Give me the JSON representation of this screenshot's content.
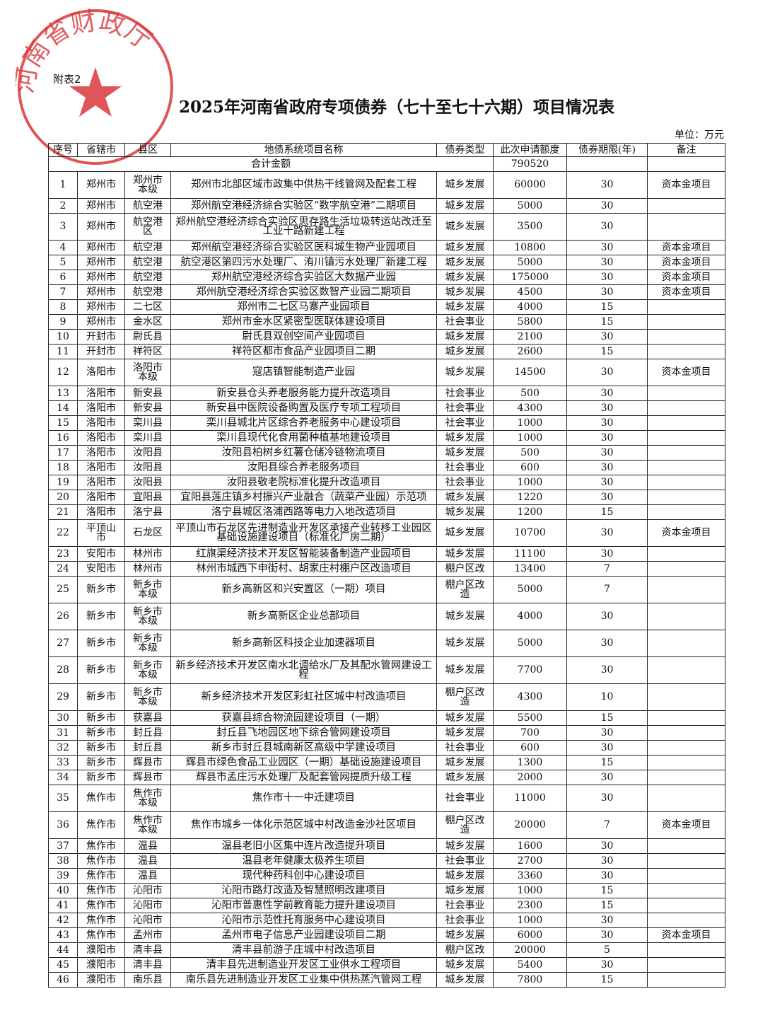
{
  "stamp": {
    "text": "河南省财政厅",
    "color": "#d8383c",
    "icon": "star-icon"
  },
  "annex_label": "附表2",
  "title": "2025年河南省政府专项债券（七十至七十六期）项目情况表",
  "unit": "单位：万元",
  "headers": [
    "序号",
    "省辖市",
    "县区",
    "地债系统项目名称",
    "债券类型",
    "此次申请额度",
    "债券期限(年)",
    "备注"
  ],
  "total": {
    "label": "合计金额",
    "amount": "790520",
    "term": "",
    "note": ""
  },
  "rows": [
    {
      "seq": "1",
      "city": "郑州市",
      "county": "郑州市本级",
      "name": "郑州市北部区域市政集中供热干线管网及配套工程",
      "type": "城乡发展",
      "amount": "60000",
      "term": "30",
      "note": "资本金项目"
    },
    {
      "seq": "2",
      "city": "郑州市",
      "county": "航空港",
      "name": "郑州航空港经济综合实验区“数字航空港”二期项目",
      "type": "城乡发展",
      "amount": "5000",
      "term": "30",
      "note": ""
    },
    {
      "seq": "3",
      "city": "郑州市",
      "county": "航空港区",
      "name": "郑州航空港经济综合实验区思存路生活垃圾转运站改迁至工业十路新建工程",
      "type": "城乡发展",
      "amount": "3500",
      "term": "30",
      "note": ""
    },
    {
      "seq": "4",
      "city": "郑州市",
      "county": "航空港",
      "name": "郑州航空港经济综合实验区医科城生物产业园项目",
      "type": "城乡发展",
      "amount": "10800",
      "term": "30",
      "note": "资本金项目"
    },
    {
      "seq": "5",
      "city": "郑州市",
      "county": "航空港",
      "name": "航空港区第四污水处理厂、洧川镇污水处理厂新建工程",
      "type": "城乡发展",
      "amount": "5000",
      "term": "30",
      "note": "资本金项目"
    },
    {
      "seq": "6",
      "city": "郑州市",
      "county": "航空港",
      "name": "郑州航空港经济综合实验区大数据产业园",
      "type": "城乡发展",
      "amount": "175000",
      "term": "30",
      "note": "资本金项目"
    },
    {
      "seq": "7",
      "city": "郑州市",
      "county": "航空港",
      "name": "郑州航空港经济综合实验区数智产业园二期项目",
      "type": "城乡发展",
      "amount": "4500",
      "term": "30",
      "note": "资本金项目"
    },
    {
      "seq": "8",
      "city": "郑州市",
      "county": "二七区",
      "name": "郑州市二七区马寨产业园项目",
      "type": "城乡发展",
      "amount": "4000",
      "term": "15",
      "note": ""
    },
    {
      "seq": "9",
      "city": "郑州市",
      "county": "金水区",
      "name": "郑州市金水区紧密型医联体建设项目",
      "type": "社会事业",
      "amount": "5800",
      "term": "15",
      "note": ""
    },
    {
      "seq": "10",
      "city": "开封市",
      "county": "尉氏县",
      "name": "尉氏县双创空间产业园项目",
      "type": "城乡发展",
      "amount": "2100",
      "term": "30",
      "note": ""
    },
    {
      "seq": "11",
      "city": "开封市",
      "county": "祥符区",
      "name": "祥符区都市食品产业园项目二期",
      "type": "城乡发展",
      "amount": "2600",
      "term": "15",
      "note": ""
    },
    {
      "seq": "12",
      "city": "洛阳市",
      "county": "洛阳市本级",
      "name": "寇店镇智能制造产业园",
      "type": "城乡发展",
      "amount": "14500",
      "term": "30",
      "note": "资本金项目"
    },
    {
      "seq": "13",
      "city": "洛阳市",
      "county": "新安县",
      "name": "新安县仓头养老服务能力提升改造项目",
      "type": "社会事业",
      "amount": "500",
      "term": "30",
      "note": ""
    },
    {
      "seq": "14",
      "city": "洛阳市",
      "county": "新安县",
      "name": "新安县中医院设备购置及医疗专项工程项目",
      "type": "社会事业",
      "amount": "4300",
      "term": "30",
      "note": ""
    },
    {
      "seq": "15",
      "city": "洛阳市",
      "county": "栾川县",
      "name": "栾川县城北片区综合养老服务中心建设项目",
      "type": "社会事业",
      "amount": "1000",
      "term": "30",
      "note": ""
    },
    {
      "seq": "16",
      "city": "洛阳市",
      "county": "栾川县",
      "name": "栾川县现代化食用菌种植基地建设项目",
      "type": "城乡发展",
      "amount": "1000",
      "term": "30",
      "note": ""
    },
    {
      "seq": "17",
      "city": "洛阳市",
      "county": "汝阳县",
      "name": "汝阳县柏树乡红薯仓储冷链物流项目",
      "type": "城乡发展",
      "amount": "500",
      "term": "30",
      "note": ""
    },
    {
      "seq": "18",
      "city": "洛阳市",
      "county": "汝阳县",
      "name": "汝阳县综合养老服务项目",
      "type": "社会事业",
      "amount": "600",
      "term": "30",
      "note": ""
    },
    {
      "seq": "19",
      "city": "洛阳市",
      "county": "汝阳县",
      "name": "汝阳县敬老院标准化提升改造项目",
      "type": "社会事业",
      "amount": "1000",
      "term": "30",
      "note": ""
    },
    {
      "seq": "20",
      "city": "洛阳市",
      "county": "宜阳县",
      "name": "宜阳县莲庄镇乡村振兴产业融合（蔬菜产业园）示范项",
      "type": "城乡发展",
      "amount": "1220",
      "term": "30",
      "note": ""
    },
    {
      "seq": "21",
      "city": "洛阳市",
      "county": "洛宁县",
      "name": "洛宁县城区洛浦西路等电力入地改造项目",
      "type": "城乡发展",
      "amount": "1200",
      "term": "15",
      "note": ""
    },
    {
      "seq": "22",
      "city": "平顶山市",
      "county": "石龙区",
      "name": "平顶山市石龙区先进制造业开发区承接产业转移工业园区基础设施建设项目（标准化厂房二期）",
      "type": "城乡发展",
      "amount": "10700",
      "term": "30",
      "note": "资本金项目"
    },
    {
      "seq": "23",
      "city": "安阳市",
      "county": "林州市",
      "name": "红旗渠经济技术开发区智能装备制造产业园项目",
      "type": "城乡发展",
      "amount": "11100",
      "term": "30",
      "note": ""
    },
    {
      "seq": "24",
      "city": "安阳市",
      "county": "林州市",
      "name": "林州市城西下申街村、胡家庄村棚户区改造项目",
      "type": "棚户区改",
      "amount": "13400",
      "term": "7",
      "note": ""
    },
    {
      "seq": "25",
      "city": "新乡市",
      "county": "新乡市本级",
      "name": "新乡高新区和兴安置区（一期）项目",
      "type": "棚户区改造",
      "amount": "5000",
      "term": "7",
      "note": ""
    },
    {
      "seq": "26",
      "city": "新乡市",
      "county": "新乡市本级",
      "name": "新乡高新区企业总部项目",
      "type": "城乡发展",
      "amount": "4000",
      "term": "30",
      "note": ""
    },
    {
      "seq": "27",
      "city": "新乡市",
      "county": "新乡市本级",
      "name": "新乡高新区科技企业加速器项目",
      "type": "城乡发展",
      "amount": "5000",
      "term": "30",
      "note": ""
    },
    {
      "seq": "28",
      "city": "新乡市",
      "county": "新乡市本级",
      "name": "新乡经济技术开发区南水北调给水厂及其配水管网建设工程",
      "type": "城乡发展",
      "amount": "7700",
      "term": "30",
      "note": ""
    },
    {
      "seq": "29",
      "city": "新乡市",
      "county": "新乡市本级",
      "name": "新乡经济技术开发区彩虹社区城中村改造项目",
      "type": "棚户区改造",
      "amount": "4300",
      "term": "10",
      "note": ""
    },
    {
      "seq": "30",
      "city": "新乡市",
      "county": "获嘉县",
      "name": "获嘉县综合物流园建设项目（一期）",
      "type": "城乡发展",
      "amount": "5500",
      "term": "15",
      "note": ""
    },
    {
      "seq": "31",
      "city": "新乡市",
      "county": "封丘县",
      "name": "封丘县飞地园区地下综合管网建设项目",
      "type": "城乡发展",
      "amount": "700",
      "term": "30",
      "note": ""
    },
    {
      "seq": "32",
      "city": "新乡市",
      "county": "封丘县",
      "name": "新乡市封丘县城南新区高级中学建设项目",
      "type": "社会事业",
      "amount": "600",
      "term": "30",
      "note": ""
    },
    {
      "seq": "33",
      "city": "新乡市",
      "county": "辉县市",
      "name": "辉县市绿色食品工业园区（一期）基础设施建设项目",
      "type": "城乡发展",
      "amount": "1300",
      "term": "15",
      "note": ""
    },
    {
      "seq": "34",
      "city": "新乡市",
      "county": "辉县市",
      "name": "辉县市孟庄污水处理厂及配套管网提质升级工程",
      "type": "城乡发展",
      "amount": "2000",
      "term": "30",
      "note": ""
    },
    {
      "seq": "35",
      "city": "焦作市",
      "county": "焦作市本级",
      "name": "焦作市十一中迁建项目",
      "type": "社会事业",
      "amount": "11000",
      "term": "30",
      "note": ""
    },
    {
      "seq": "36",
      "city": "焦作市",
      "county": "焦作市本级",
      "name": "焦作市城乡一体化示范区城中村改造金沙社区项目",
      "type": "棚户区改造",
      "amount": "20000",
      "term": "7",
      "note": "资本金项目"
    },
    {
      "seq": "37",
      "city": "焦作市",
      "county": "温县",
      "name": "温县老旧小区集中连片改造提升项目",
      "type": "城乡发展",
      "amount": "1600",
      "term": "30",
      "note": ""
    },
    {
      "seq": "38",
      "city": "焦作市",
      "county": "温县",
      "name": "温县老年健康太极养生项目",
      "type": "社会事业",
      "amount": "2700",
      "term": "30",
      "note": ""
    },
    {
      "seq": "39",
      "city": "焦作市",
      "county": "温县",
      "name": "现代种药科创中心建设项目",
      "type": "城乡发展",
      "amount": "3360",
      "term": "30",
      "note": ""
    },
    {
      "seq": "40",
      "city": "焦作市",
      "county": "沁阳市",
      "name": "沁阳市路灯改造及智慧照明改建项目",
      "type": "城乡发展",
      "amount": "1000",
      "term": "15",
      "note": ""
    },
    {
      "seq": "41",
      "city": "焦作市",
      "county": "沁阳市",
      "name": "沁阳市普惠性学前教育能力提升建设项目",
      "type": "社会事业",
      "amount": "2300",
      "term": "15",
      "note": ""
    },
    {
      "seq": "42",
      "city": "焦作市",
      "county": "沁阳市",
      "name": "沁阳市示范性托育服务中心建设项目",
      "type": "社会事业",
      "amount": "1000",
      "term": "30",
      "note": ""
    },
    {
      "seq": "43",
      "city": "焦作市",
      "county": "孟州市",
      "name": "孟州市电子信息产业园建设项目二期",
      "type": "城乡发展",
      "amount": "6000",
      "term": "30",
      "note": "资本金项目"
    },
    {
      "seq": "44",
      "city": "濮阳市",
      "county": "清丰县",
      "name": "清丰县前游子庄城中村改造项目",
      "type": "棚户区改",
      "amount": "20000",
      "term": "5",
      "note": ""
    },
    {
      "seq": "45",
      "city": "濮阳市",
      "county": "清丰县",
      "name": "清丰县先进制造业开发区工业供水工程项目",
      "type": "城乡发展",
      "amount": "5400",
      "term": "30",
      "note": ""
    },
    {
      "seq": "46",
      "city": "濮阳市",
      "county": "南乐县",
      "name": "南乐县先进制造业开发区工业集中供热蒸汽管网工程",
      "type": "城乡发展",
      "amount": "7800",
      "term": "15",
      "note": ""
    }
  ]
}
